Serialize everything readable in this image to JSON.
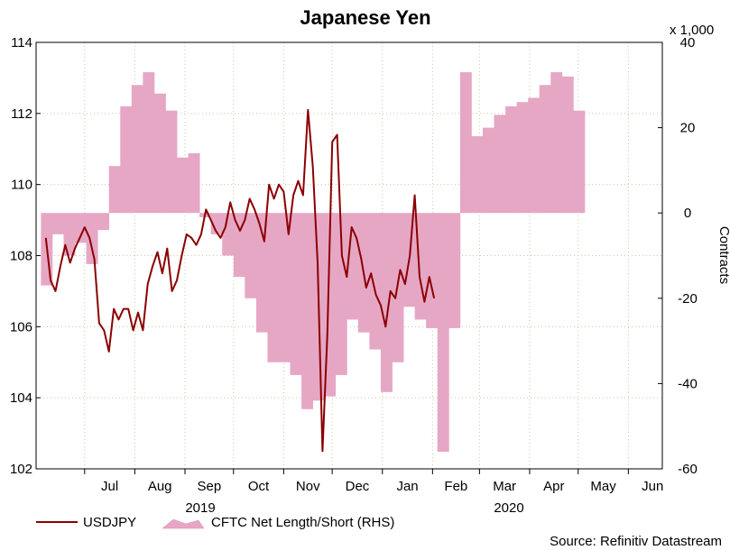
{
  "chart_data": {
    "type": "line",
    "title": "Japanese Yen",
    "source": "Source: Refinitiv Datastream",
    "left_axis": {
      "min": 102,
      "max": 114,
      "ticks": [
        102,
        104,
        106,
        108,
        110,
        112,
        114
      ],
      "label": ""
    },
    "right_axis": {
      "min": -60,
      "max": 40,
      "ticks": [
        -60,
        -40,
        -20,
        0,
        20,
        40
      ],
      "label": "Contracts",
      "scale_note": "x 1,000"
    },
    "x_axis": {
      "month_labels": [
        "Jul",
        "Aug",
        "Sep",
        "Oct",
        "Nov",
        "Dec",
        "Jan",
        "Feb",
        "Mar",
        "Apr",
        "May",
        "Jun"
      ],
      "year_labels": [
        "2019",
        "2020"
      ]
    },
    "legend": [
      "USDJPY",
      "CFTC Net Length/Short (RHS)"
    ],
    "colors": {
      "line": "#8b0000",
      "area": "#e6a7c5",
      "area_edge": "#d98cb3",
      "grid": "#c8c8a0"
    },
    "series": [
      {
        "name": "USDJPY",
        "axis": "left",
        "type": "line",
        "start": "2019-06-07",
        "step_days": 3,
        "values": [
          108.5,
          107.3,
          107.0,
          107.7,
          108.3,
          107.8,
          108.2,
          108.5,
          108.8,
          108.5,
          107.9,
          106.1,
          105.9,
          105.3,
          106.5,
          106.2,
          106.5,
          106.5,
          105.9,
          106.4,
          105.9,
          107.2,
          107.7,
          108.1,
          107.5,
          108.2,
          107.0,
          107.3,
          108.0,
          108.6,
          108.5,
          108.3,
          108.6,
          109.3,
          109.0,
          108.7,
          108.5,
          108.8,
          109.5,
          109.0,
          108.7,
          109.0,
          109.6,
          109.3,
          108.9,
          108.4,
          110.0,
          109.6,
          110.0,
          109.8,
          108.6,
          109.7,
          110.1,
          109.7,
          112.1,
          110.5,
          107.8,
          102.5,
          105.8,
          111.2,
          111.4,
          108.0,
          107.4,
          108.8,
          108.5,
          107.9,
          107.1,
          107.5,
          106.9,
          106.6,
          106.0,
          107.0,
          106.8,
          107.6,
          107.2,
          108.0,
          109.7,
          107.4,
          106.7,
          107.4,
          106.8
        ]
      },
      {
        "name": "CFTC Net Length/Short (RHS)",
        "axis": "right",
        "type": "area",
        "start": "2019-06-04",
        "step_days": 7,
        "values": [
          -17,
          -5,
          -10,
          -7,
          -12,
          -4,
          11,
          25,
          30,
          33,
          28,
          24,
          13,
          14,
          -1,
          -5,
          -10,
          -15,
          -20,
          -28,
          -35,
          -35,
          -38,
          -46,
          -44,
          -43,
          -38,
          -25,
          -28,
          -32,
          -42,
          -35,
          -22,
          -25,
          -27,
          -56,
          -27,
          33,
          18,
          20,
          23,
          25,
          26,
          27,
          30,
          33,
          32,
          24
        ]
      }
    ]
  }
}
